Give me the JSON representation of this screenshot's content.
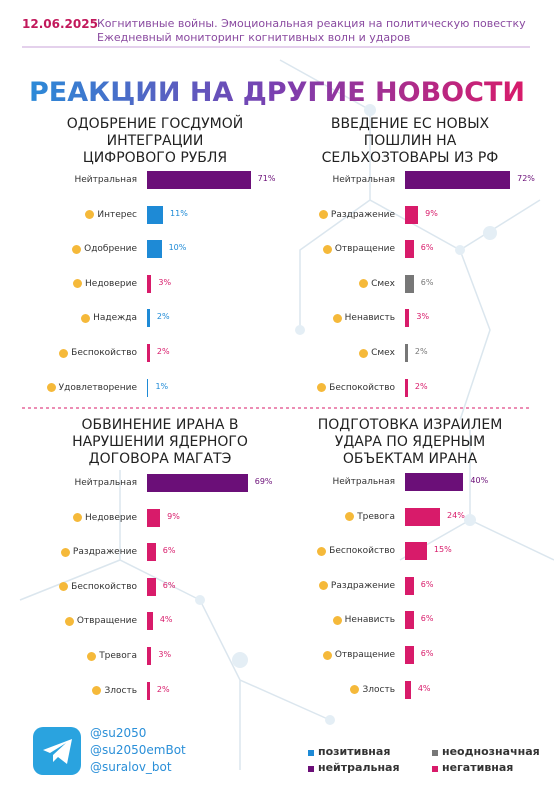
{
  "header": {
    "date": "12.06.2025",
    "line1": "Когнитивные войны. Эмоциональная реакция на политическую повестку",
    "line2": "Ежедневный мониторинг когнитивных волн и ударов"
  },
  "title": "РЕАКЦИИ НА ДРУГИЕ НОВОСТИ",
  "chart_data": [
    {
      "type": "bar",
      "title": "ОДОБРЕНИЕ ГОСДУМОЙ ИНТЕГРАЦИИ ЦИФРОВОГО РУБЛЯ",
      "categories": [
        "Нейтральная",
        "Интерес",
        "Одобрение",
        "Недоверие",
        "Надежда",
        "Беспокойство",
        "Удовлетворение"
      ],
      "values": [
        71,
        11,
        10,
        3,
        2,
        2,
        1
      ],
      "value_labels": [
        "71%",
        "11%",
        "10%",
        "3%",
        "2%",
        "2%",
        "1%"
      ],
      "colors": [
        "#6b0f78",
        "#1e8ad6",
        "#1e8ad6",
        "#d81b6a",
        "#1e8ad6",
        "#d81b6a",
        "#1e8ad6"
      ]
    },
    {
      "type": "bar",
      "title": "ВВЕДЕНИЕ ЕС НОВЫХ ПОШЛИН НА СЕЛЬХОЗТОВАРЫ ИЗ РФ",
      "categories": [
        "Нейтральная",
        "Раздражение",
        "Отвращение",
        "Смех",
        "Ненависть",
        "Смех",
        "Беспокойство"
      ],
      "values": [
        72,
        9,
        6,
        6,
        3,
        2,
        2
      ],
      "value_labels": [
        "72%",
        "9%",
        "6%",
        "6%",
        "3%",
        "2%",
        "2%"
      ],
      "colors": [
        "#6b0f78",
        "#d81b6a",
        "#d81b6a",
        "#777777",
        "#d81b6a",
        "#777777",
        "#d81b6a"
      ]
    },
    {
      "type": "bar",
      "title": "ОБВИНЕНИЕ ИРАНА В НАРУШЕНИИ ЯДЕРНОГО ДОГОВОРА МАГАТЭ",
      "categories": [
        "Нейтральная",
        "Недоверие",
        "Раздражение",
        "Беспокойство",
        "Отвращение",
        "Тревога",
        "Злость"
      ],
      "values": [
        69,
        9,
        6,
        6,
        4,
        3,
        2
      ],
      "value_labels": [
        "69%",
        "9%",
        "6%",
        "6%",
        "4%",
        "3%",
        "2%"
      ],
      "colors": [
        "#6b0f78",
        "#d81b6a",
        "#d81b6a",
        "#d81b6a",
        "#d81b6a",
        "#d81b6a",
        "#d81b6a"
      ]
    },
    {
      "type": "bar",
      "title": "ПОДГОТОВКА ИЗРАИЛЕМ УДАРА ПО ЯДЕРНЫМ ОБЪЕКТАМ ИРАНА",
      "categories": [
        "Нейтральная",
        "Тревога",
        "Беспокойство",
        "Раздражение",
        "Ненависть",
        "Отвращение",
        "Злость"
      ],
      "values": [
        40,
        24,
        15,
        6,
        6,
        6,
        4
      ],
      "value_labels": [
        "40%",
        "24%",
        "15%",
        "6%",
        "6%",
        "6%",
        "4%"
      ],
      "colors": [
        "#6b0f78",
        "#d81b6a",
        "#d81b6a",
        "#d81b6a",
        "#d81b6a",
        "#d81b6a",
        "#d81b6a"
      ]
    }
  ],
  "footer": {
    "handles": [
      "@su2050",
      "@su2050emBot",
      "@suralov_bot"
    ]
  },
  "legend": [
    {
      "name": "позитивная",
      "color": "#1e8ad6"
    },
    {
      "name": "неоднозначная",
      "color": "#777777"
    },
    {
      "name": "нейтральная",
      "color": "#6b0f78"
    },
    {
      "name": "негативная",
      "color": "#d81b6a"
    }
  ]
}
